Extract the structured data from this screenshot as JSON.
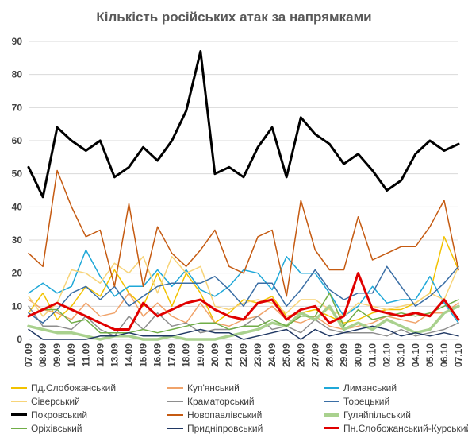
{
  "colors": {
    "background": "#ffffff",
    "grid": "#d9d9d9",
    "axis_text": "#404040",
    "title": "#595959"
  },
  "chart_data": {
    "type": "line",
    "title": "Кількість російських атак за напрямками",
    "xlabel": "",
    "ylabel": "",
    "ylim": [
      0,
      90
    ],
    "yticks": [
      0,
      10,
      20,
      30,
      40,
      50,
      60,
      70,
      80,
      90
    ],
    "grid": true,
    "legend_position": "bottom",
    "x": [
      "07.09",
      "08.09",
      "09.09",
      "10.09",
      "11.09",
      "12.09",
      "13.09",
      "14.09",
      "15.09",
      "16.09",
      "17.09",
      "18.09",
      "19.09",
      "20.09",
      "21.09",
      "22.09",
      "23.09",
      "24.09",
      "25.09",
      "26.09",
      "27.09",
      "28.09",
      "29.09",
      "30.09",
      "01.10",
      "02.10",
      "03.10",
      "04.10",
      "05.10",
      "06.10",
      "07.10"
    ],
    "series": [
      {
        "name": "Пд.Слобожанський",
        "color": "#f2c200",
        "width": 1.5,
        "values": [
          8,
          14,
          6,
          10,
          16,
          13,
          21,
          14,
          10,
          20,
          10,
          20,
          14,
          5,
          8,
          12,
          11,
          13,
          7,
          8,
          9,
          7,
          5,
          6,
          8,
          9,
          9,
          11,
          14,
          31,
          21
        ]
      },
      {
        "name": "Куп'янський",
        "color": "#f0a36a",
        "width": 1.5,
        "values": [
          12,
          9,
          8,
          6,
          11,
          7,
          8,
          14,
          7,
          11,
          7,
          5,
          11,
          5,
          4,
          6,
          7,
          10,
          6,
          5,
          7,
          4,
          3,
          4,
          5,
          7,
          6,
          5,
          8,
          8,
          11
        ]
      },
      {
        "name": "Лиманський",
        "color": "#1fa8d8",
        "width": 1.5,
        "values": [
          14,
          17,
          14,
          16,
          27,
          19,
          13,
          16,
          16,
          21,
          16,
          21,
          15,
          13,
          16,
          21,
          20,
          15,
          25,
          20,
          20,
          14,
          7,
          10,
          16,
          11,
          12,
          12,
          19,
          11,
          5
        ]
      },
      {
        "name": "Сіверський",
        "color": "#f7d479",
        "width": 1.5,
        "values": [
          13,
          7,
          11,
          21,
          20,
          17,
          23,
          20,
          25,
          14,
          25,
          20,
          22,
          10,
          9,
          11,
          12,
          11,
          8,
          12,
          12,
          9,
          7,
          11,
          10,
          9,
          10,
          11,
          14,
          12,
          22
        ]
      },
      {
        "name": "Краматорський",
        "color": "#8e8e8e",
        "width": 1.5,
        "values": [
          10,
          4,
          4,
          3,
          7,
          3,
          1,
          7,
          3,
          8,
          4,
          5,
          2,
          3,
          3,
          4,
          7,
          3,
          4,
          2,
          6,
          3,
          2,
          2,
          2,
          1,
          3,
          1,
          2,
          3,
          5
        ]
      },
      {
        "name": "Торецький",
        "color": "#3a6ea5",
        "width": 1.5,
        "values": [
          8,
          5,
          9,
          14,
          16,
          12,
          16,
          10,
          13,
          16,
          17,
          17,
          17,
          19,
          15,
          10,
          17,
          17,
          10,
          15,
          21,
          15,
          12,
          14,
          14,
          22,
          16,
          10,
          13,
          17,
          22
        ]
      },
      {
        "name": "Покровський",
        "color": "#000000",
        "width": 3,
        "values": [
          52,
          43,
          64,
          60,
          57,
          60,
          49,
          52,
          58,
          54,
          60,
          69,
          87,
          50,
          52,
          49,
          58,
          64,
          49,
          67,
          62,
          59,
          53,
          56,
          51,
          45,
          48,
          56,
          60,
          57,
          59
        ]
      },
      {
        "name": "Новопавлівський",
        "color": "#c55a11",
        "width": 1.5,
        "values": [
          26,
          22,
          51,
          40,
          31,
          33,
          16,
          41,
          16,
          34,
          26,
          22,
          27,
          33,
          22,
          20,
          31,
          33,
          13,
          42,
          27,
          21,
          21,
          37,
          24,
          26,
          28,
          28,
          34,
          42,
          21
        ]
      },
      {
        "name": "Гуляйпільський",
        "color": "#a9d18e",
        "width": 3.5,
        "values": [
          4,
          3,
          2,
          2,
          1,
          0,
          1,
          1,
          0,
          0,
          1,
          0,
          0,
          0,
          1,
          2,
          3,
          5,
          4,
          8,
          6,
          10,
          3,
          5,
          3,
          6,
          4,
          2,
          3,
          8,
          10
        ]
      },
      {
        "name": "Оріхівський",
        "color": "#70ad47",
        "width": 1.5,
        "values": [
          7,
          9,
          9,
          5,
          6,
          2,
          2,
          2,
          3,
          2,
          3,
          4,
          5,
          5,
          3,
          4,
          4,
          6,
          4,
          7,
          7,
          14,
          4,
          9,
          6,
          7,
          8,
          7,
          8,
          10,
          12
        ]
      },
      {
        "name": "Придніпровський",
        "color": "#203864",
        "width": 1.5,
        "values": [
          3,
          0,
          0,
          0,
          0,
          1,
          1,
          2,
          1,
          1,
          1,
          2,
          3,
          2,
          2,
          0,
          1,
          2,
          3,
          0,
          3,
          1,
          2,
          3,
          4,
          3,
          1,
          2,
          1,
          2,
          1
        ]
      },
      {
        "name": "Пн.Слобожанський-Курський",
        "color": "#e00000",
        "width": 3,
        "values": [
          7,
          9,
          11,
          9,
          7,
          5,
          3,
          3,
          11,
          7,
          9,
          11,
          12,
          9,
          7,
          6,
          11,
          12,
          6,
          9,
          10,
          5,
          7,
          20,
          9,
          8,
          7,
          8,
          7,
          12,
          6
        ]
      }
    ]
  }
}
